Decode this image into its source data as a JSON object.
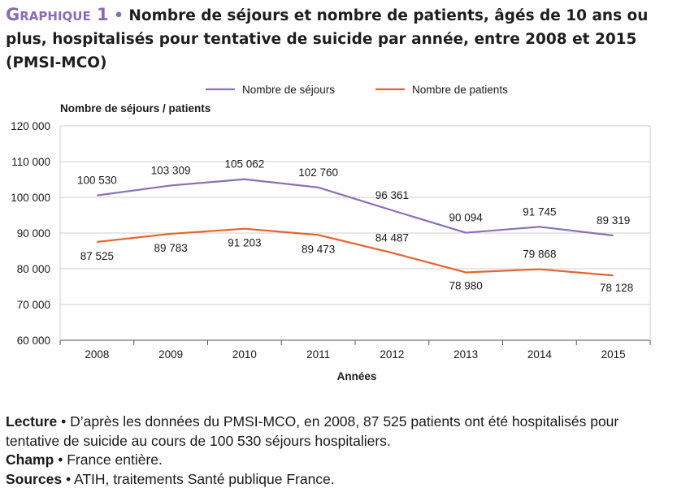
{
  "header": {
    "label": "Graphique 1",
    "bullet": "•",
    "title": "Nombre de séjours et nombre de patients, âgés de 10 ans ou plus, hospitalisés pour tentative de suicide par année, entre 2008 et 2015 (PMSI-MCO)"
  },
  "colors": {
    "accent": "#8a6cb5",
    "sejours": "#8b70b8",
    "patients": "#e9612d",
    "grid": "#cfcfcf"
  },
  "chart_data": {
    "type": "line",
    "title": "Nombre de séjours et nombre de patients, âgés de 10 ans ou plus, hospitalisés pour tentative de suicide par année, entre 2008 et 2015 (PMSI-MCO)",
    "xlabel": "Années",
    "ylabel": "Nombre de séjours / patients",
    "categories": [
      "2008",
      "2009",
      "2010",
      "2011",
      "2012",
      "2013",
      "2014",
      "2015"
    ],
    "ylim": [
      60000,
      120000
    ],
    "yticks": [
      60000,
      70000,
      80000,
      90000,
      100000,
      110000,
      120000
    ],
    "ytick_labels": [
      "60 000",
      "70 000",
      "80 000",
      "90 000",
      "100 000",
      "110 000",
      "120 000"
    ],
    "grid": true,
    "legend_position": "top",
    "series": [
      {
        "name": "Nombre de séjours",
        "color": "#8b70b8",
        "values": [
          100530,
          103309,
          105062,
          102760,
          96361,
          90094,
          91745,
          89319
        ],
        "labels": [
          "100 530",
          "103 309",
          "105 062",
          "102 760",
          "96 361",
          "90 094",
          "91 745",
          "89 319"
        ]
      },
      {
        "name": "Nombre de patients",
        "color": "#e9612d",
        "values": [
          87525,
          89783,
          91203,
          89473,
          84487,
          78980,
          79868,
          78128
        ],
        "labels": [
          "87 525",
          "89 783",
          "91 203",
          "89 473",
          "84 487",
          "78 980",
          "79 868",
          "78 128"
        ]
      }
    ]
  },
  "notes": {
    "lecture_label": "Lecture",
    "lecture_text": "D’après les données du PMSI-MCO, en 2008, 87 525 patients ont été hospitalisés pour tentative de suicide au cours de 100 530 séjours hospitaliers.",
    "champ_label": "Champ",
    "champ_text": "France entière.",
    "sources_label": "Sources",
    "sources_text": "ATIH, traitements Santé publique France.",
    "bullet": "•"
  }
}
